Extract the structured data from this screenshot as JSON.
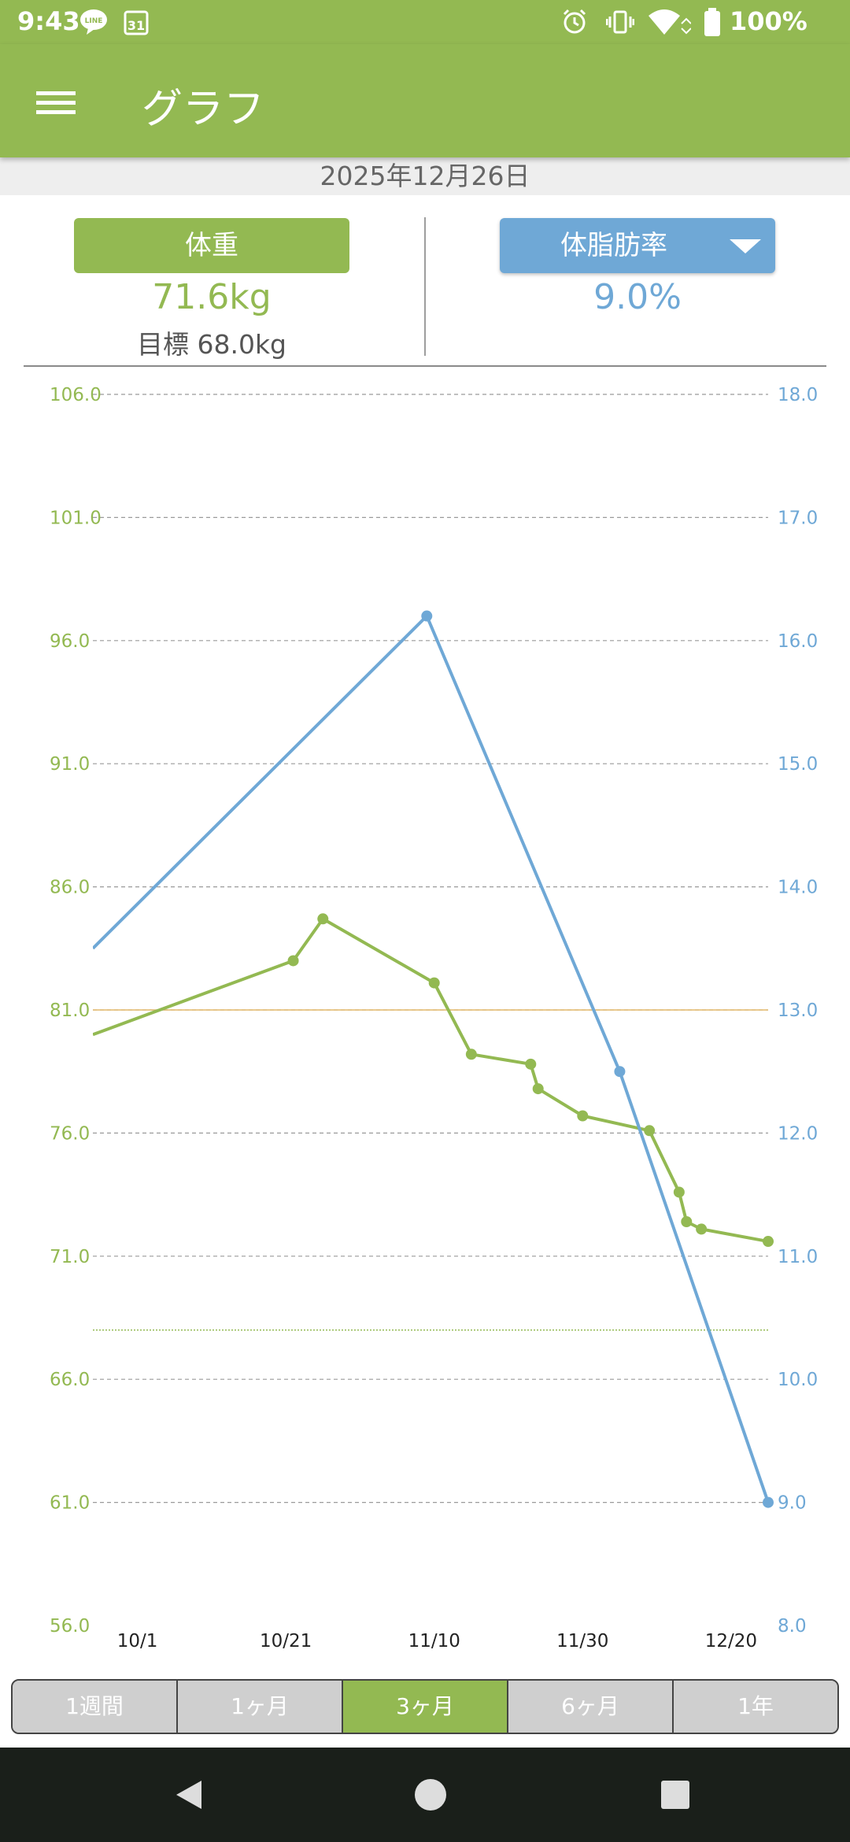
{
  "status_bar": {
    "time": "9:43",
    "line_icon": "line-app-icon",
    "calendar_day": "31",
    "battery_percent": "100%"
  },
  "app_bar": {
    "title": "グラフ",
    "menu_icon": "hamburger-menu-icon"
  },
  "date": "2025年12月26日",
  "summary": {
    "weight_label": "体重",
    "weight_value": "71.6kg",
    "weight_goal": "目標 68.0kg",
    "bodyfat_label": "体脂肪率",
    "bodyfat_value": "9.0%"
  },
  "chart_data": {
    "type": "line",
    "x_tick_labels": [
      "10/1",
      "10/21",
      "11/10",
      "11/30",
      "12/20"
    ],
    "x_ticks_day": [
      0,
      20,
      40,
      60,
      80
    ],
    "xlim_day": [
      -6,
      85
    ],
    "y_left_ticks": [
      "106.0",
      "101.0",
      "96.0",
      "91.0",
      "86.0",
      "81.0",
      "76.0",
      "71.0",
      "66.0",
      "61.0",
      "56.0"
    ],
    "y_left_lim": [
      56,
      106
    ],
    "y_right_ticks": [
      "18.0",
      "17.0",
      "16.0",
      "15.0",
      "14.0",
      "13.0",
      "12.0",
      "11.0",
      "10.0",
      "9.0",
      "8.0"
    ],
    "y_right_lim": [
      8,
      18
    ],
    "grid": true,
    "colors": {
      "weight": "#93b952",
      "bodyfat": "#6fa8d6",
      "ref_line": "#e3b86a"
    },
    "reference_line_left": 81.0,
    "goal_line_left": 68.0,
    "series": [
      {
        "axis": "left",
        "x_day": [
          -6,
          21,
          25,
          40,
          45,
          53,
          54,
          60,
          69,
          73,
          74,
          76,
          85
        ],
        "y": [
          80.0,
          83.0,
          84.7,
          82.1,
          79.2,
          78.8,
          77.8,
          76.7,
          76.1,
          73.6,
          72.4,
          72.1,
          71.6
        ],
        "first_point_marker": false
      },
      {
        "axis": "right",
        "x_day": [
          -6,
          39,
          65,
          85
        ],
        "y": [
          13.5,
          16.2,
          12.5,
          9.0
        ],
        "first_point_marker": false
      }
    ]
  },
  "range_tabs": [
    {
      "label": "1週間",
      "active": false
    },
    {
      "label": "1ヶ月",
      "active": false
    },
    {
      "label": "3ヶ月",
      "active": true
    },
    {
      "label": "6ヶ月",
      "active": false
    },
    {
      "label": "1年",
      "active": false
    }
  ],
  "nav": {
    "back_icon": "back-triangle-icon",
    "home_icon": "home-circle-icon",
    "recents_icon": "recents-square-icon"
  }
}
